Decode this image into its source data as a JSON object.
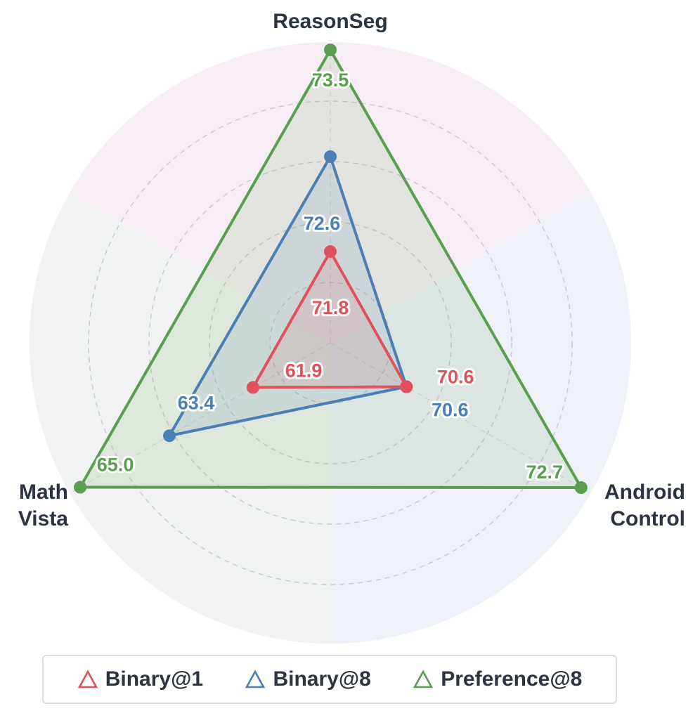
{
  "chart_data": {
    "type": "radar",
    "axes": [
      "ReasonSeg",
      "Android Control",
      "Math Vista"
    ],
    "axis_label_lines": [
      [
        "ReasonSeg"
      ],
      [
        "Android",
        "Control"
      ],
      [
        "Math",
        "Vista"
      ]
    ],
    "series": [
      {
        "name": "Binary@1",
        "color": "#e0525b",
        "values": [
          71.8,
          70.6,
          61.9
        ],
        "labels": [
          "71.8",
          "70.6",
          "61.9"
        ]
      },
      {
        "name": "Binary@8",
        "color": "#4a7fb5",
        "values": [
          72.6,
          70.6,
          63.4
        ],
        "labels": [
          "72.6",
          "70.6",
          "63.4"
        ]
      },
      {
        "name": "Preference@8",
        "color": "#5a9e4f",
        "values": [
          73.5,
          72.7,
          65.0
        ],
        "labels": [
          "73.5",
          "72.7",
          "65.0"
        ]
      }
    ],
    "sector_colors": [
      "#f6eef4",
      "#eef1f8",
      "#f0f3f1"
    ],
    "grid": "dashed concentric circles",
    "legend_position": "bottom",
    "legend_icon": "triangle-outline"
  }
}
